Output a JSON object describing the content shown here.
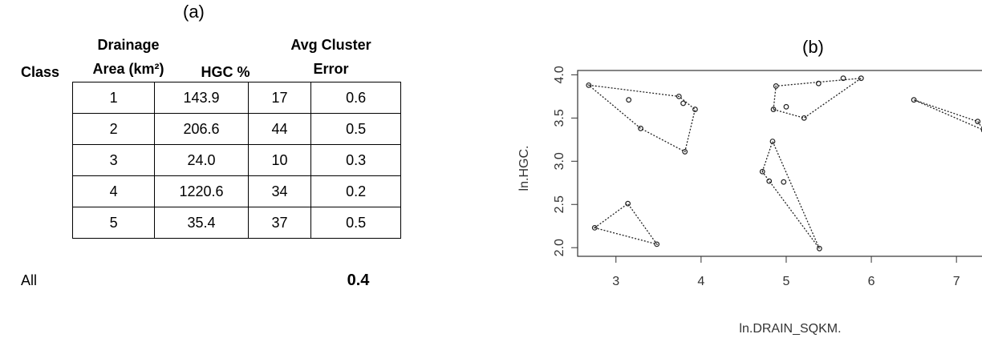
{
  "panel_a": {
    "label": "(a)",
    "headers": {
      "class": "Class",
      "drainage_line1": "Drainage",
      "drainage_line2": "Area (km²)",
      "hgc": "HGC %",
      "avg_line1": "Avg Cluster",
      "avg_line2": "Error"
    },
    "rows": [
      {
        "class": "1",
        "area": "143.9",
        "hgc": "17",
        "error": "0.6"
      },
      {
        "class": "2",
        "area": "206.6",
        "hgc": "44",
        "error": "0.5"
      },
      {
        "class": "3",
        "area": "24.0",
        "hgc": "10",
        "error": "0.3"
      },
      {
        "class": "4",
        "area": "1220.6",
        "hgc": "34",
        "error": "0.2"
      },
      {
        "class": "5",
        "area": "35.4",
        "hgc": "37",
        "error": "0.5"
      }
    ],
    "all_label": "All",
    "all_value": "0.4"
  },
  "chart_data": {
    "type": "scatter",
    "title": "(b)",
    "xlabel": "ln.DRAIN_SQKM.",
    "ylabel": "ln.HGC.",
    "xlim": [
      2.55,
      7.3
    ],
    "ylim": [
      1.9,
      4.05
    ],
    "xticks": [
      3,
      4,
      5,
      6,
      7
    ],
    "yticks": [
      2.0,
      2.5,
      3.0,
      3.5,
      4.0
    ],
    "ytick_labels": [
      "2.0",
      "2.5",
      "3.0",
      "3.5",
      "4.0"
    ],
    "grid": false,
    "points": [
      [
        2.68,
        3.88
      ],
      [
        3.15,
        3.71
      ],
      [
        3.29,
        3.38
      ],
      [
        3.74,
        3.75
      ],
      [
        3.79,
        3.67
      ],
      [
        3.81,
        3.11
      ],
      [
        3.93,
        3.6
      ],
      [
        2.75,
        2.23
      ],
      [
        3.14,
        2.51
      ],
      [
        3.48,
        2.04
      ],
      [
        4.72,
        2.88
      ],
      [
        4.8,
        2.77
      ],
      [
        4.84,
        3.23
      ],
      [
        4.97,
        2.76
      ],
      [
        5.39,
        1.99
      ],
      [
        4.85,
        3.6
      ],
      [
        4.88,
        3.87
      ],
      [
        5.0,
        3.63
      ],
      [
        5.21,
        3.5
      ],
      [
        5.38,
        3.9
      ],
      [
        5.67,
        3.96
      ],
      [
        5.88,
        3.96
      ],
      [
        6.5,
        3.71
      ],
      [
        7.25,
        3.46
      ],
      [
        7.32,
        3.36
      ]
    ],
    "hulls": [
      [
        [
          2.68,
          3.88
        ],
        [
          3.74,
          3.75
        ],
        [
          3.93,
          3.6
        ],
        [
          3.81,
          3.11
        ],
        [
          3.29,
          3.38
        ]
      ],
      [
        [
          2.75,
          2.23
        ],
        [
          3.14,
          2.51
        ],
        [
          3.48,
          2.04
        ]
      ],
      [
        [
          4.72,
          2.88
        ],
        [
          4.84,
          3.23
        ],
        [
          5.39,
          1.99
        ]
      ],
      [
        [
          4.85,
          3.6
        ],
        [
          4.88,
          3.87
        ],
        [
          5.88,
          3.96
        ],
        [
          5.21,
          3.5
        ]
      ],
      [
        [
          6.5,
          3.71
        ],
        [
          7.25,
          3.46
        ],
        [
          7.32,
          3.36
        ]
      ]
    ]
  }
}
